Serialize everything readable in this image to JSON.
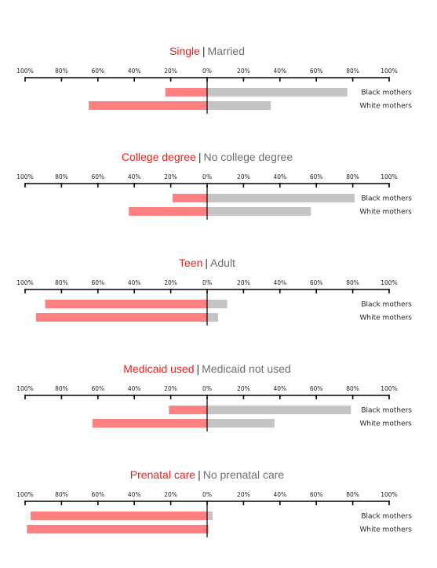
{
  "colors": {
    "left": "#ff8080",
    "right": "#c4c4c4",
    "title_left": "#e8231e",
    "title_right": "#6e6e6e",
    "axis": "#000000"
  },
  "chart_data": [
    {
      "type": "bar",
      "title_left": "Single",
      "title_sep": "|",
      "title_right": "Married",
      "ticks": [
        "100%",
        "80%",
        "60%",
        "40%",
        "20%",
        "0%",
        "20%",
        "40%",
        "60%",
        "80%",
        "100%"
      ],
      "xlim": [
        -100,
        100
      ],
      "series": [
        {
          "name": "Black mothers",
          "left": 23,
          "right": 77
        },
        {
          "name": "White mothers",
          "left": 65,
          "right": 35
        }
      ]
    },
    {
      "type": "bar",
      "title_left": "College degree",
      "title_sep": "|",
      "title_right": "No college degree",
      "ticks": [
        "100%",
        "80%",
        "60%",
        "40%",
        "20%",
        "0%",
        "20%",
        "40%",
        "60%",
        "80%",
        "100%"
      ],
      "xlim": [
        -100,
        100
      ],
      "series": [
        {
          "name": "Black mothers",
          "left": 19,
          "right": 81
        },
        {
          "name": "White mothers",
          "left": 43,
          "right": 57
        }
      ]
    },
    {
      "type": "bar",
      "title_left": "Teen",
      "title_sep": "|",
      "title_right": "Adult",
      "ticks": [
        "100%",
        "80%",
        "60%",
        "40%",
        "20%",
        "0%",
        "20%",
        "40%",
        "60%",
        "80%",
        "100%"
      ],
      "xlim": [
        -100,
        100
      ],
      "series": [
        {
          "name": "Black mothers",
          "left": 89,
          "right": 11
        },
        {
          "name": "White mothers",
          "left": 94,
          "right": 6
        }
      ]
    },
    {
      "type": "bar",
      "title_left": "Medicaid used",
      "title_sep": "|",
      "title_right": "Medicaid not used",
      "ticks": [
        "100%",
        "80%",
        "60%",
        "40%",
        "20%",
        "0%",
        "20%",
        "40%",
        "60%",
        "80%",
        "100%"
      ],
      "xlim": [
        -100,
        100
      ],
      "series": [
        {
          "name": "Black mothers",
          "left": 21,
          "right": 79
        },
        {
          "name": "White mothers",
          "left": 63,
          "right": 37
        }
      ]
    },
    {
      "type": "bar",
      "title_left": "Prenatal care",
      "title_sep": "|",
      "title_right": "No prenatal care",
      "ticks": [
        "100%",
        "80%",
        "60%",
        "40%",
        "20%",
        "0%",
        "20%",
        "40%",
        "60%",
        "80%",
        "100%"
      ],
      "xlim": [
        -100,
        100
      ],
      "series": [
        {
          "name": "Black mothers",
          "left": 97,
          "right": 3
        },
        {
          "name": "White mothers",
          "left": 99,
          "right": 1
        }
      ]
    }
  ]
}
